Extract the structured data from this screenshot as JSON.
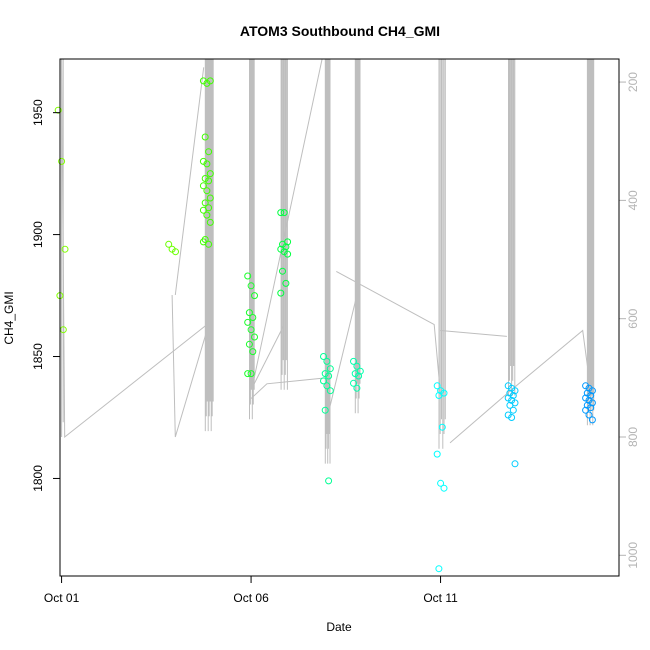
{
  "chart_data": {
    "type": "scatter",
    "title": "ATOM3 Southbound CH4_GMI",
    "xlabel": "Date",
    "ylabel": "CH4_GMI",
    "x_unit": "day",
    "xlim": [
      "2017-10-00T23:00",
      "2017-10-15T17:00"
    ],
    "ylim": [
      1760,
      1972
    ],
    "y_ticks": [
      1800,
      1850,
      1900,
      1950
    ],
    "x_ticks": [
      {
        "value": "2017-10-01",
        "label": "Oct 01"
      },
      {
        "value": "2017-10-06",
        "label": "Oct 06"
      },
      {
        "value": "2017-10-11",
        "label": "Oct 11"
      }
    ],
    "right_axis": {
      "label": "",
      "ticks": [
        200,
        400,
        600,
        800,
        1000
      ],
      "range_top_to_bottom": [
        161,
        1035
      ],
      "color": "#b4b4b4"
    },
    "grid": false,
    "legend": "none",
    "point_style": "open-circle",
    "line_color": "#bebebe",
    "flights": [
      {
        "x": "2017-10-01T00:00",
        "color": "#80ff00",
        "values": [
          1951,
          1930,
          1894,
          1875,
          1861
        ]
      },
      {
        "x": "2017-10-03T22:00",
        "color": "#6bff00",
        "values": [
          1896,
          1894,
          1893
        ]
      },
      {
        "x": "2017-10-04T20:00",
        "color": "#40ff00",
        "values": [
          1963,
          1962,
          1963,
          1940,
          1934,
          1930,
          1929,
          1925,
          1923,
          1922,
          1920,
          1918,
          1915,
          1913,
          1911,
          1910,
          1908,
          1905,
          1898,
          1896,
          1897
        ]
      },
      {
        "x": "2017-10-06T00:00",
        "color": "#1aff2a",
        "values": [
          1883,
          1879,
          1875,
          1868,
          1866,
          1864,
          1861,
          1858,
          1855,
          1852,
          1843,
          1843
        ]
      },
      {
        "x": "2017-10-06T21:00",
        "color": "#00ff40",
        "values": [
          1909,
          1909,
          1897,
          1896,
          1895,
          1894,
          1893,
          1892,
          1885,
          1880,
          1876
        ]
      },
      {
        "x": "2017-10-08T00:00",
        "color": "#00ff95",
        "values": [
          1850,
          1848,
          1845,
          1843,
          1842,
          1840,
          1838,
          1836,
          1828,
          1799
        ]
      },
      {
        "x": "2017-10-08T19:00",
        "color": "#00ffaa",
        "values": [
          1848,
          1846,
          1844,
          1843,
          1842,
          1839,
          1837
        ]
      },
      {
        "x": "2017-10-11T00:00",
        "color": "#00ffff",
        "values": [
          1838,
          1836,
          1835,
          1834,
          1821,
          1810,
          1798,
          1796,
          1763
        ]
      },
      {
        "x": "2017-10-12T21:00",
        "color": "#00ccff",
        "values": [
          1838,
          1837,
          1836,
          1835,
          1834,
          1833,
          1832,
          1831,
          1830,
          1828,
          1826,
          1825,
          1806
        ]
      },
      {
        "x": "2017-10-14T22:00",
        "color": "#0099ff",
        "values": [
          1838,
          1837,
          1836,
          1835,
          1834,
          1833,
          1832,
          1831,
          1830,
          1829,
          1828,
          1826,
          1824
        ]
      }
    ],
    "profile_segments": [
      {
        "x": [
          "2017-10-01T00:00",
          "2017-10-01T02:00",
          "2017-10-04T20:00"
        ],
        "alt": [
          161,
          800,
          610
        ]
      },
      {
        "x": [
          "2017-10-03T22:00",
          "2017-10-04T00:00",
          "2017-10-04T20:00"
        ],
        "alt": [
          560,
          800,
          620
        ]
      },
      {
        "x": [
          "2017-10-04T00:00",
          "2017-10-04T18:00"
        ],
        "alt": [
          560,
          175
        ]
      },
      {
        "x": [
          "2017-10-06T00:00",
          "2017-10-06T10:00",
          "2017-10-08T00:00"
        ],
        "alt": [
          735,
          710,
          700
        ]
      },
      {
        "x": [
          "2017-10-06T02:00",
          "2017-10-06T21:00"
        ],
        "alt": [
          710,
          610
        ]
      },
      {
        "x": [
          "2017-10-06T02:00",
          "2017-10-07T21:00"
        ],
        "alt": [
          700,
          161
        ]
      },
      {
        "x": [
          "2017-10-08T00:00",
          "2017-10-08T19:00"
        ],
        "alt": [
          770,
          560
        ]
      },
      {
        "x": [
          "2017-10-08T06:00",
          "2017-10-10T20:00",
          "2017-10-11T00:00"
        ],
        "alt": [
          520,
          610,
          730
        ]
      },
      {
        "x": [
          "2017-10-11T00:00",
          "2017-10-12T18:00"
        ],
        "alt": [
          620,
          630
        ]
      },
      {
        "x": [
          "2017-10-11T06:00",
          "2017-10-12T21:00"
        ],
        "alt": [
          810,
          720
        ]
      },
      {
        "x": [
          "2017-10-12T21:00",
          "2017-10-14T18:00",
          "2017-10-14T22:00"
        ],
        "alt": [
          720,
          620,
          700
        ]
      }
    ],
    "profile_spikes": [
      {
        "x": [
          "2017-10-01T00:00",
          "2017-10-01T01:00"
        ],
        "alt_top": 161,
        "alt_bottom": 800,
        "count": 2
      },
      {
        "x": [
          "2017-10-04T19:00",
          "2017-10-05T00:00"
        ],
        "alt_top": 161,
        "alt_bottom": 790,
        "count": 9
      },
      {
        "x": [
          "2017-10-05T23:00",
          "2017-10-06T02:00"
        ],
        "alt_top": 161,
        "alt_bottom": 770,
        "count": 6
      },
      {
        "x": [
          "2017-10-06T19:00",
          "2017-10-06T23:00"
        ],
        "alt_top": 161,
        "alt_bottom": 720,
        "count": 7
      },
      {
        "x": [
          "2017-10-07T23:00",
          "2017-10-08T02:00"
        ],
        "alt_top": 161,
        "alt_bottom": 845,
        "count": 7
      },
      {
        "x": [
          "2017-10-08T18:00",
          "2017-10-08T21:00"
        ],
        "alt_top": 161,
        "alt_bottom": 760,
        "count": 6
      },
      {
        "x": [
          "2017-10-10T23:00",
          "2017-10-11T03:00"
        ],
        "alt_top": 161,
        "alt_bottom": 820,
        "count": 6
      },
      {
        "x": [
          "2017-10-12T19:00",
          "2017-10-12T23:00"
        ],
        "alt_top": 161,
        "alt_bottom": 730,
        "count": 7
      },
      {
        "x": [
          "2017-10-14T21:00",
          "2017-10-15T01:00"
        ],
        "alt_top": 161,
        "alt_bottom": 780,
        "count": 8
      }
    ]
  }
}
